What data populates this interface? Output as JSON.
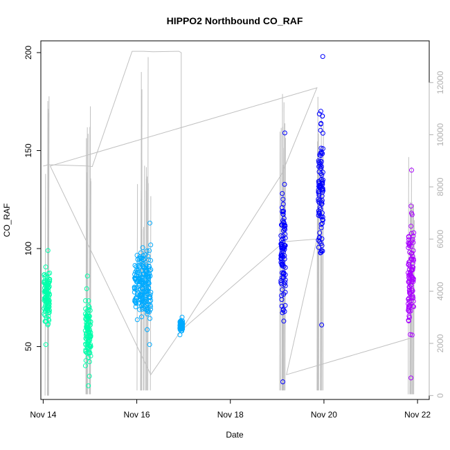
{
  "chart_data": {
    "type": "scatter",
    "title": "HIPPO2 Northbound CO_RAF",
    "xlabel": "Date",
    "ylabel": "CO_RAF",
    "x_ticks": [
      "Nov 14",
      "Nov 16",
      "Nov 18",
      "Nov 20",
      "Nov 22"
    ],
    "y_ticks": [
      "50",
      "100",
      "150",
      "200"
    ],
    "y2_ticks": [
      "0",
      "2000",
      "4000",
      "6000",
      "8000",
      "10000",
      "12000"
    ],
    "xlim": [
      13.95,
      22.25
    ],
    "ylim": [
      23,
      206
    ],
    "y2lim": [
      -150,
      13600
    ],
    "secondary_axis": "altitude trace (gray line, right axis)",
    "grid": false,
    "series": [
      {
        "name": "",
        "color": "#00ffaa",
        "clusters": [
          {
            "x": [
              14.02,
              14.14
            ],
            "y": [
              51,
              99
            ]
          },
          {
            "x": [
              14.9,
              15.02
            ],
            "y": [
              30,
              86
            ]
          }
        ]
      },
      {
        "name": "",
        "color": "#00aaff",
        "clusters": [
          {
            "x": [
              15.95,
              16.3
            ],
            "y": [
              51,
              113
            ]
          },
          {
            "x": [
              16.92,
              16.98
            ],
            "y": [
              56,
              65
            ]
          }
        ]
      },
      {
        "name": "",
        "color": "#0000ff",
        "clusters": [
          {
            "x": [
              19.08,
              19.18
            ],
            "y": [
              32,
              159
            ]
          },
          {
            "x": [
              19.88,
              19.98
            ],
            "y": [
              61,
              198
            ]
          }
        ]
      },
      {
        "name": "",
        "color": "#aa00ff",
        "clusters": [
          {
            "x": [
              21.8,
              21.92
            ],
            "y": [
              34,
              140
            ]
          }
        ]
      }
    ],
    "altitude_path": [
      [
        14.0,
        8800
      ],
      [
        14.05,
        8820
      ],
      [
        14.1,
        8850
      ],
      [
        14.95,
        8800
      ],
      [
        15.05,
        8780
      ],
      [
        15.9,
        13200
      ],
      [
        16.15,
        13200
      ],
      [
        16.35,
        13180
      ],
      [
        16.9,
        13200
      ],
      [
        16.95,
        13150
      ],
      [
        16.95,
        2500
      ],
      [
        16.3,
        800
      ],
      [
        14.15,
        8800
      ],
      [
        19.85,
        11800
      ],
      [
        19.1,
        8500
      ],
      [
        16.95,
        2500
      ],
      [
        19.15,
        5900
      ],
      [
        19.85,
        6000
      ],
      [
        19.2,
        800
      ],
      [
        21.85,
        2200
      ]
    ]
  }
}
